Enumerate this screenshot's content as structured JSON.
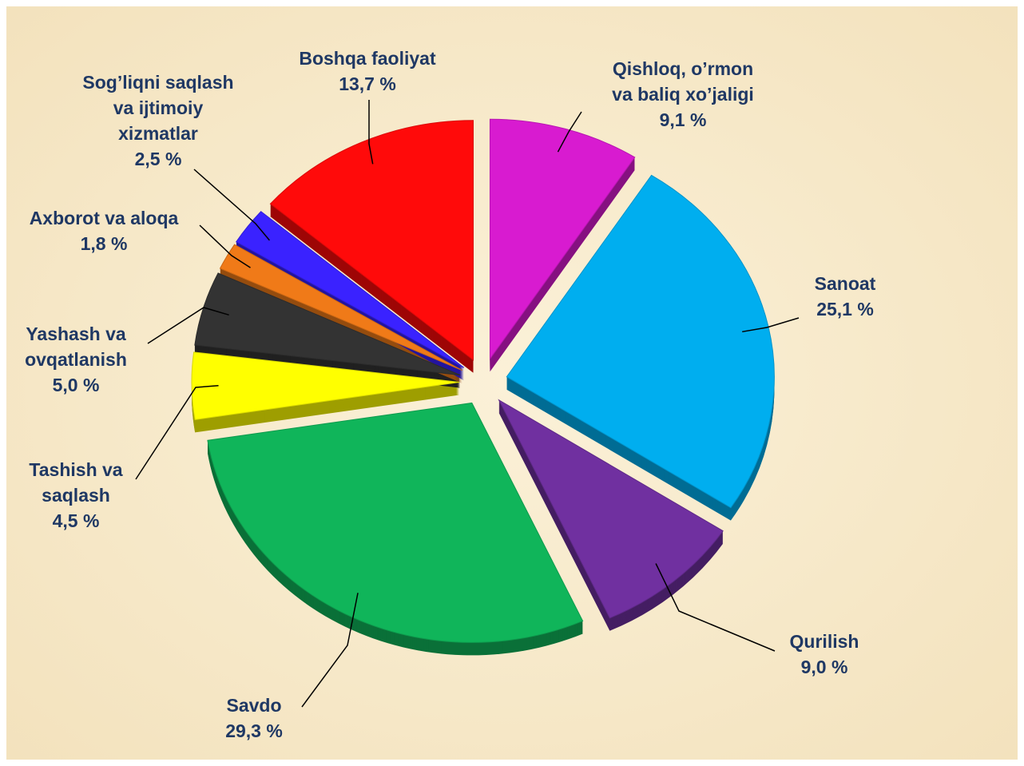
{
  "chart_data": {
    "type": "pie",
    "categories": [
      "Qishloq, o’rmon\nva baliq xo’jaligi",
      "Sanoat",
      "Qurilish",
      "Savdo",
      "Tashish va\nsaqlash",
      "Yashash va\novqatlanish",
      "Axborot va aloqa",
      "Sog’liqni saqlash\nva ijtimoiy\nxizmatlar",
      "Boshqa faoliyat"
    ],
    "values": [
      9.1,
      25.1,
      9.0,
      29.3,
      4.5,
      5.0,
      1.8,
      2.5,
      13.7
    ],
    "value_labels": [
      "9,1 %",
      "25,1 %",
      "9,0 %",
      "29,3 %",
      "4,5 %",
      "5,0 %",
      "1,8 %",
      "2,5 %",
      "13,7 %"
    ],
    "colors": [
      "#d81bd0",
      "#00aeef",
      "#7030a0",
      "#10b55a",
      "#ffff00",
      "#333333",
      "#f07a18",
      "#3a22ff",
      "#ff0a0a"
    ]
  }
}
